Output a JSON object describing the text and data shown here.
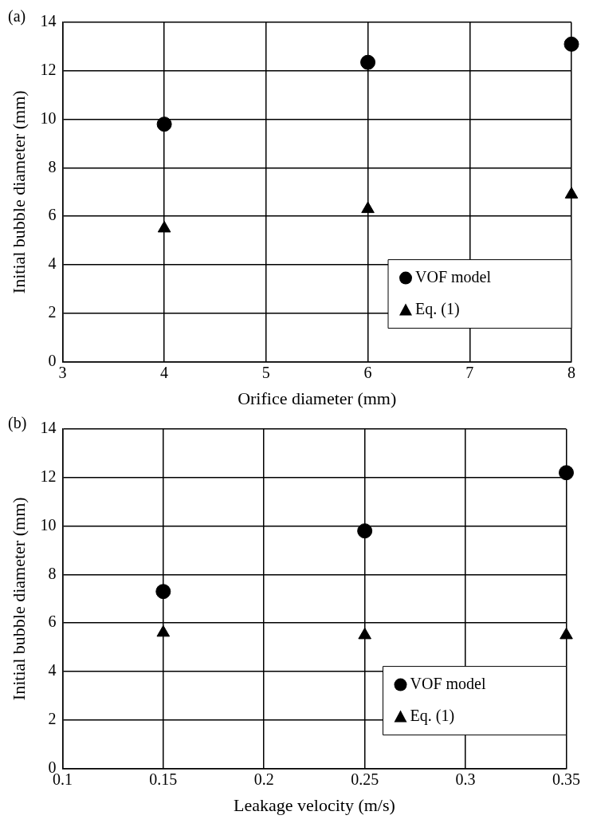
{
  "chart_data": [
    {
      "type": "scatter",
      "annotations": [
        "(a)"
      ],
      "xlabel": "Orifice diameter (mm)",
      "ylabel": "Initial bubble diameter (mm)",
      "xlim": [
        3,
        8
      ],
      "xticks": [
        3,
        4,
        5,
        6,
        7,
        8
      ],
      "ylim": [
        0,
        14
      ],
      "yticks": [
        0,
        2,
        4,
        6,
        8,
        10,
        12,
        14
      ],
      "grid": true,
      "legend": "bottom right",
      "series": [
        {
          "name": "VOF model",
          "color": "#000000",
          "marker": "circle",
          "x": [
            4,
            6,
            8
          ],
          "values": [
            9.8,
            12.35,
            13.1
          ]
        },
        {
          "name": "Eq. (1)",
          "color": "#000000",
          "marker": "triangle",
          "x": [
            4,
            6,
            8
          ],
          "values": [
            5.5,
            6.3,
            6.9
          ]
        }
      ]
    },
    {
      "type": "scatter",
      "annotations": [
        "(b)"
      ],
      "xlabel": "Leakage velocity (m/s)",
      "ylabel": "Initial bubble diameter (mm)",
      "xlim": [
        0.1,
        0.35
      ],
      "xticks": [
        0.1,
        0.15,
        0.2,
        0.25,
        0.3,
        0.35
      ],
      "ylim": [
        0,
        14
      ],
      "yticks": [
        0,
        2,
        4,
        6,
        8,
        10,
        12,
        14
      ],
      "grid": true,
      "legend": "bottom right",
      "series": [
        {
          "name": "VOF model",
          "color": "#000000",
          "marker": "circle",
          "x": [
            0.15,
            0.25,
            0.35
          ],
          "values": [
            7.3,
            9.8,
            12.2
          ]
        },
        {
          "name": "Eq. (1)",
          "color": "#000000",
          "marker": "triangle",
          "x": [
            0.15,
            0.25,
            0.35
          ],
          "values": [
            5.6,
            5.5,
            5.5
          ]
        }
      ]
    }
  ]
}
